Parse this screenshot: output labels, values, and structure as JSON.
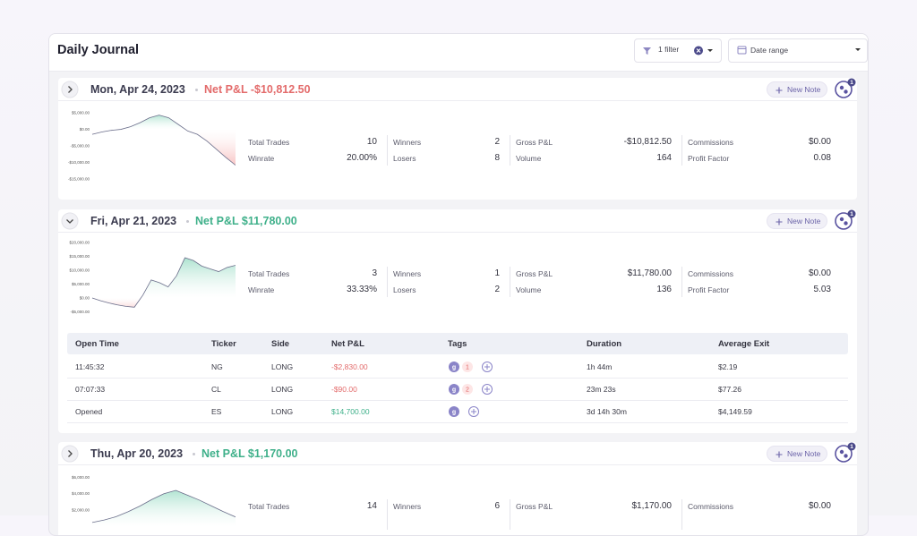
{
  "header": {
    "title": "Daily Journal",
    "filter": "1 filter",
    "date_range": "Date range"
  },
  "days": [
    {
      "date": "Mon, Apr 24, 2023",
      "net_pnl": "Net P&L -$10,812.50",
      "positive": false,
      "new_note": "New Note",
      "badge": "1",
      "expanded": false,
      "stats": [
        {
          "label": "Total Trades",
          "value": "10"
        },
        {
          "label": "Winners",
          "value": "2"
        },
        {
          "label": "Gross P&L",
          "value": "-$10,812.50"
        },
        {
          "label": "Commissions",
          "value": "$0.00"
        },
        {
          "label": "Winrate",
          "value": "20.00%"
        },
        {
          "label": "Losers",
          "value": "8"
        },
        {
          "label": "Volume",
          "value": "164"
        },
        {
          "label": "Profit Factor",
          "value": "0.08"
        }
      ],
      "chart": {
        "type": "area",
        "ylim": [
          -17400,
          6900
        ],
        "yticks": [
          {
            "value": 5000,
            "label": "$5,000.00"
          },
          {
            "value": 0,
            "label": "$0.00"
          },
          {
            "value": -5000,
            "label": "-$5,000.00"
          },
          {
            "value": -10000,
            "label": "-$10,000.00"
          },
          {
            "value": -15000,
            "label": "-$15,000.00"
          }
        ],
        "values": [
          -1500,
          -800,
          -300,
          0,
          800,
          2000,
          3500,
          4300,
          3500,
          1500,
          -500,
          -1500,
          -3500,
          -6000,
          -8500,
          -10812.5
        ]
      }
    },
    {
      "date": "Fri, Apr 21, 2023",
      "net_pnl": "Net P&L $11,780.00",
      "positive": true,
      "new_note": "New Note",
      "badge": "1",
      "expanded": true,
      "stats": [
        {
          "label": "Total Trades",
          "value": "3"
        },
        {
          "label": "Winners",
          "value": "1"
        },
        {
          "label": "Gross P&L",
          "value": "$11,780.00"
        },
        {
          "label": "Commissions",
          "value": "$0.00"
        },
        {
          "label": "Winrate",
          "value": "33.33%"
        },
        {
          "label": "Losers",
          "value": "2"
        },
        {
          "label": "Volume",
          "value": "136"
        },
        {
          "label": "Profit Factor",
          "value": "5.03"
        }
      ],
      "chart": {
        "type": "area",
        "ylim": [
          -7400,
          21600
        ],
        "yticks": [
          {
            "value": 20000,
            "label": "$20,000.00"
          },
          {
            "value": 15000,
            "label": "$15,000.00"
          },
          {
            "value": 10000,
            "label": "$10,000.00"
          },
          {
            "value": 5000,
            "label": "$5,000.00"
          },
          {
            "value": 0,
            "label": "$0.00"
          },
          {
            "value": -5000,
            "label": "-$5,000.00"
          }
        ],
        "values": [
          0,
          -1000,
          -1800,
          -2500,
          -3000,
          -3300,
          1000,
          6500,
          5500,
          4000,
          8000,
          14500,
          13500,
          11500,
          10500,
          9500,
          11000,
          11780
        ]
      },
      "trades": {
        "columns": [
          "Open Time",
          "Ticker",
          "Side",
          "Net P&L",
          "Tags",
          "Duration",
          "Average Exit"
        ],
        "rows": [
          {
            "open_time": "11:45:32",
            "ticker": "NG",
            "side": "LONG",
            "net_pnl": "-$2,830.00",
            "positive": false,
            "tag": "g",
            "tag_count": "1",
            "duration": "1h 44m",
            "average_exit": "$2.19"
          },
          {
            "open_time": "07:07:33",
            "ticker": "CL",
            "side": "LONG",
            "net_pnl": "-$90.00",
            "positive": false,
            "tag": "g",
            "tag_count": "2",
            "duration": "23m 23s",
            "average_exit": "$77.26"
          },
          {
            "open_time": "Opened",
            "ticker": "ES",
            "side": "LONG",
            "net_pnl": "$14,700.00",
            "positive": true,
            "tag": "g",
            "duration": "3d 14h 30m",
            "average_exit": "$4,149.59"
          }
        ]
      }
    },
    {
      "date": "Thu, Apr 20, 2023",
      "net_pnl": "Net P&L $1,170.00",
      "positive": true,
      "new_note": "New Note",
      "badge": "1",
      "expanded": false,
      "stats": [
        {
          "label": "Total Trades",
          "value": "14"
        },
        {
          "label": "Winners",
          "value": "6"
        },
        {
          "label": "Gross P&L",
          "value": "$1,170.00"
        },
        {
          "label": "Commissions",
          "value": "$0.00"
        }
      ],
      "chart": {
        "type": "area",
        "ylim": [
          -3000,
          6800
        ],
        "yticks": [
          {
            "value": 6000,
            "label": "$6,000.00"
          },
          {
            "value": 4000,
            "label": "$4,000.00"
          },
          {
            "value": 2000,
            "label": "$2,000.00"
          }
        ],
        "values": [
          500,
          800,
          1200,
          1800,
          2500,
          3300,
          4000,
          4400,
          3800,
          3200,
          2500,
          1800,
          1170
        ]
      }
    }
  ]
}
